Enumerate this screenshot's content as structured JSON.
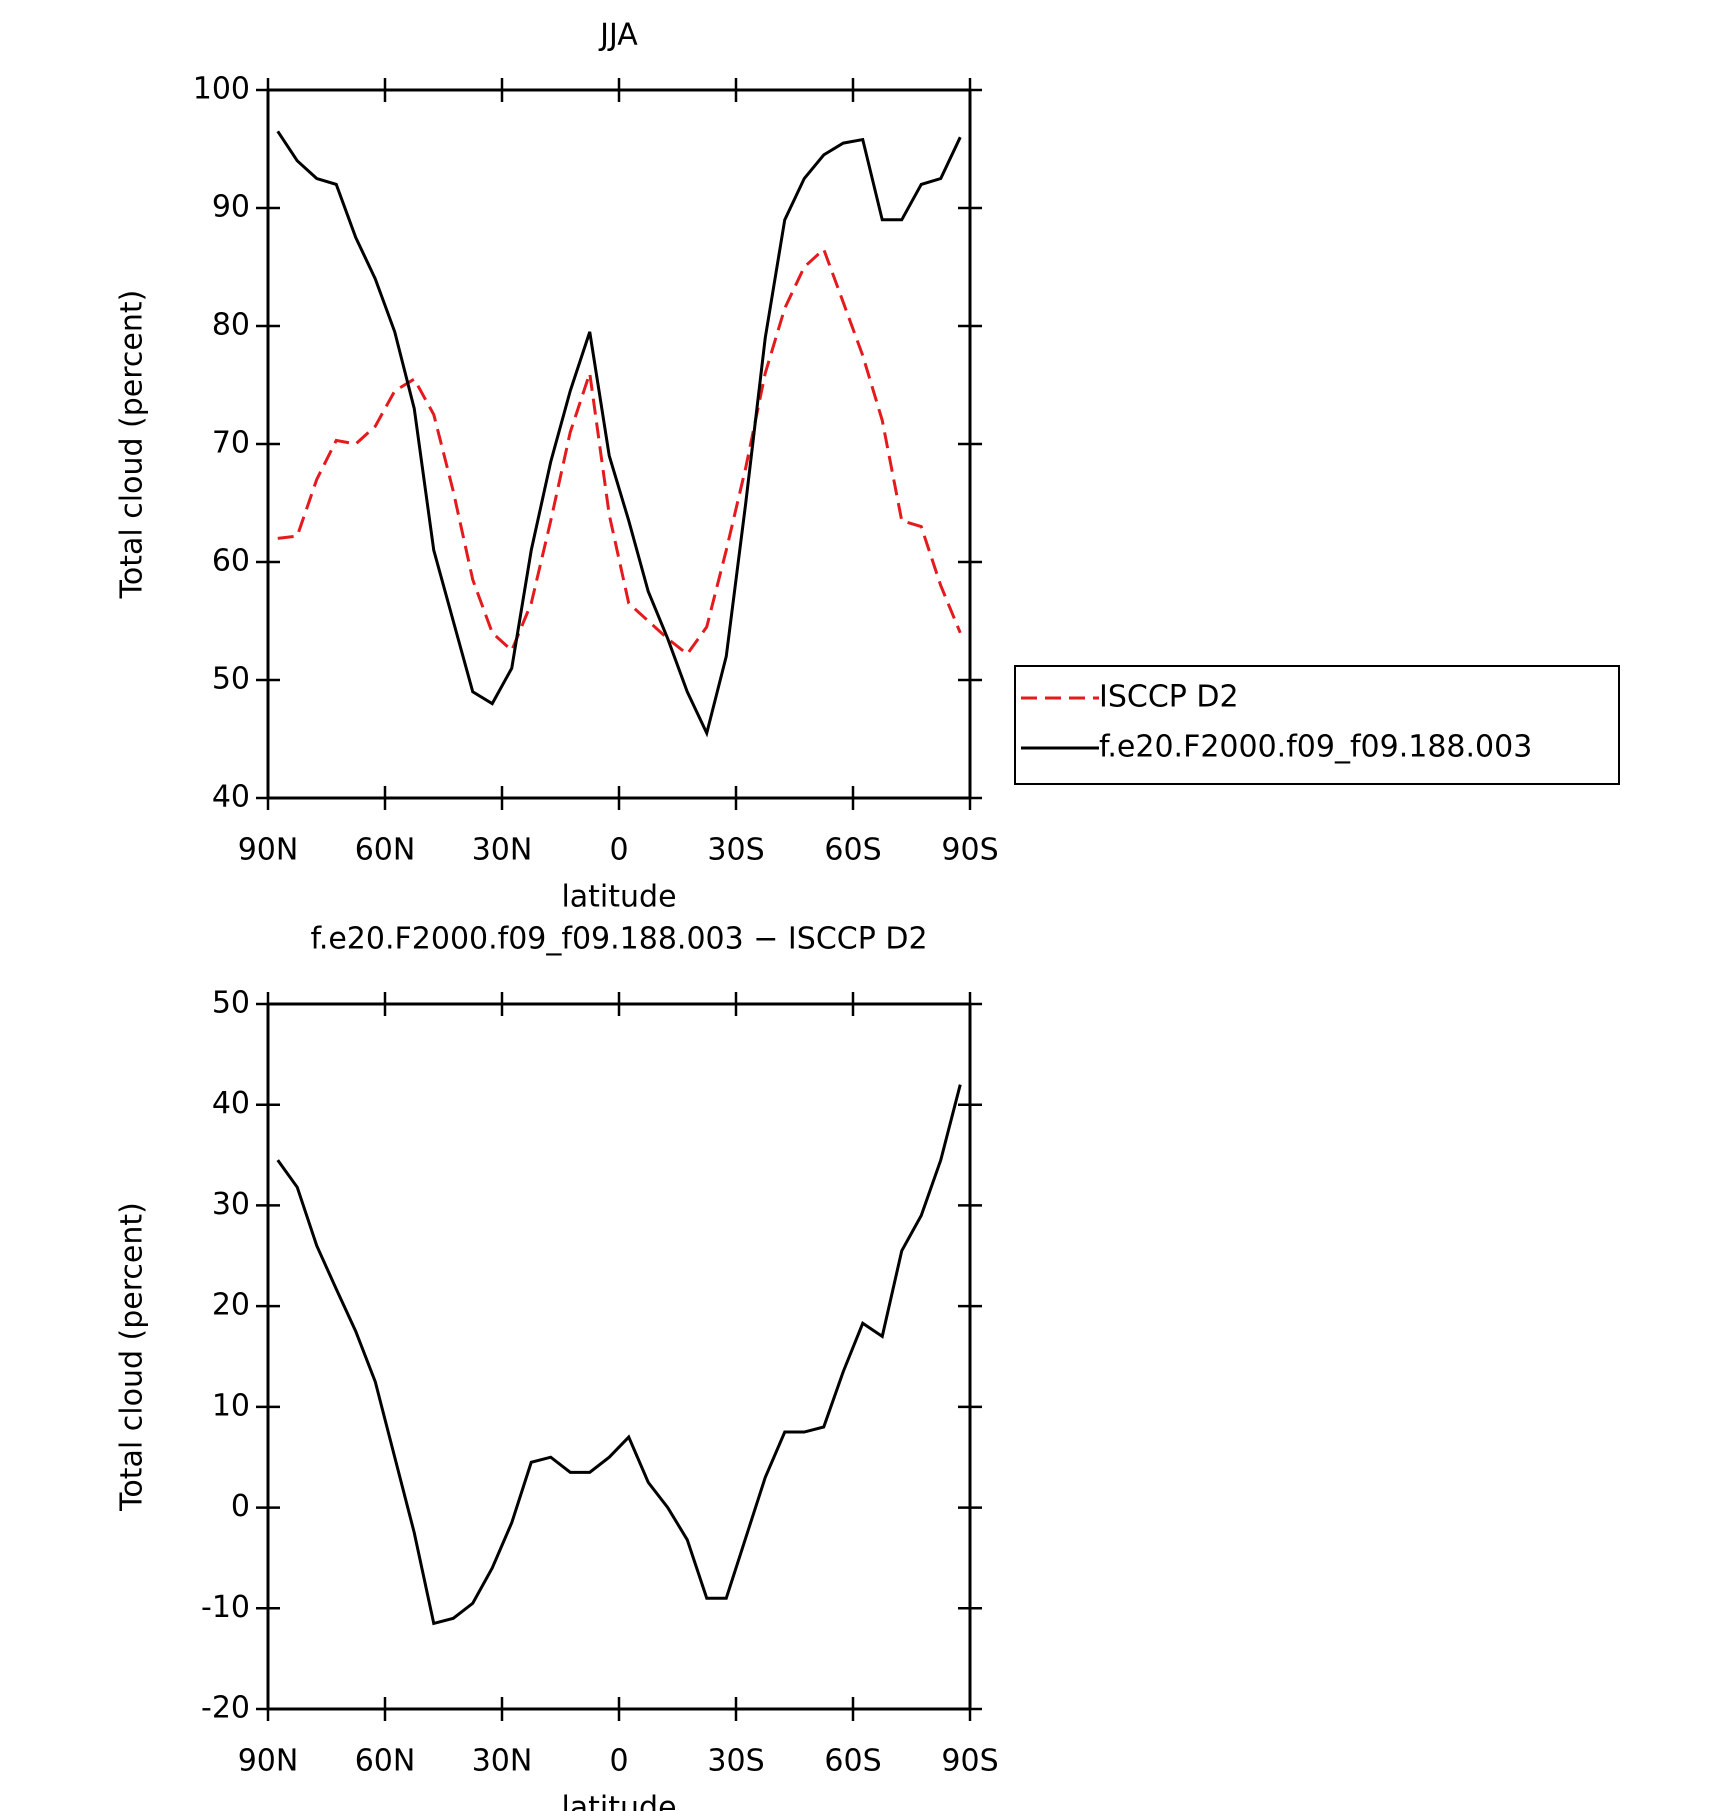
{
  "chart_data": [
    {
      "type": "line",
      "title": "JJA",
      "xlabel": "latitude",
      "ylabel": "Total cloud (percent)",
      "x": [
        87.5,
        82.5,
        77.5,
        72.5,
        67.5,
        62.5,
        57.5,
        52.5,
        47.5,
        42.5,
        37.5,
        32.5,
        27.5,
        22.5,
        17.5,
        12.5,
        7.5,
        2.5,
        -2.5,
        -7.5,
        -12.5,
        -17.5,
        -22.5,
        -27.5,
        -32.5,
        -37.5,
        -42.5,
        -47.5,
        -52.5,
        -57.5,
        -62.5,
        -67.5,
        -72.5,
        -77.5,
        -82.5,
        -87.5
      ],
      "series": [
        {
          "name": "ISCCP D2",
          "color": "#e41a1c",
          "dash": true,
          "values": [
            62,
            62.2,
            67,
            70.3,
            70,
            71.5,
            74.5,
            75.5,
            72.5,
            66,
            58.5,
            54,
            52.5,
            56.5,
            63.5,
            71,
            76,
            64,
            56.5,
            55,
            53.5,
            52.2,
            54.5,
            61,
            68,
            76,
            81.5,
            85,
            86.5,
            82,
            77.5,
            72,
            63.5,
            63,
            58,
            54
          ]
        },
        {
          "name": "f.e20.F2000.f09_f09.188.003",
          "color": "#000000",
          "dash": false,
          "values": [
            96.5,
            94,
            92.5,
            92,
            87.5,
            84,
            79.5,
            73,
            61,
            55,
            49,
            48,
            51,
            61,
            68.5,
            74.5,
            79.5,
            69,
            63.5,
            57.5,
            53.5,
            49,
            45.5,
            52,
            65,
            79,
            89,
            92.5,
            94.5,
            95.5,
            95.8,
            89,
            89,
            92,
            92.5,
            96
          ]
        }
      ],
      "xlim": [
        90,
        -90
      ],
      "xticks": [
        {
          "value": 90,
          "label": "90N"
        },
        {
          "value": 60,
          "label": "60N"
        },
        {
          "value": 30,
          "label": "30N"
        },
        0,
        {
          "value": -30,
          "label": "30S"
        },
        {
          "value": -60,
          "label": "60S"
        },
        {
          "value": -90,
          "label": "90S"
        }
      ],
      "ylim": [
        40,
        100
      ],
      "yticks": [
        40,
        50,
        60,
        70,
        80,
        90,
        100
      ],
      "legend": "right"
    },
    {
      "type": "line",
      "title": "f.e20.F2000.f09_f09.188.003 − ISCCP D2",
      "xlabel": "latitude",
      "ylabel": "Total cloud (percent)",
      "x": [
        87.5,
        82.5,
        77.5,
        72.5,
        67.5,
        62.5,
        57.5,
        52.5,
        47.5,
        42.5,
        37.5,
        32.5,
        27.5,
        22.5,
        17.5,
        12.5,
        7.5,
        2.5,
        -2.5,
        -7.5,
        -12.5,
        -17.5,
        -22.5,
        -27.5,
        -32.5,
        -37.5,
        -42.5,
        -47.5,
        -52.5,
        -57.5,
        -62.5,
        -67.5,
        -72.5,
        -77.5,
        -82.5,
        -87.5
      ],
      "series": [
        {
          "color": "#000000",
          "dash": false,
          "values": [
            34.5,
            31.8,
            26,
            21.7,
            17.5,
            12.5,
            5,
            -2.5,
            -11.5,
            -11,
            -9.5,
            -6,
            -1.5,
            4.5,
            5,
            3.5,
            3.5,
            5,
            7,
            2.5,
            0,
            -3.2,
            -9,
            -9,
            -3,
            3,
            7.5,
            7.5,
            8,
            13.5,
            18.3,
            17,
            25.5,
            29,
            34.5,
            42
          ]
        }
      ],
      "xlim": [
        90,
        -90
      ],
      "xticks": [
        {
          "value": 90,
          "label": "90N"
        },
        {
          "value": 60,
          "label": "60N"
        },
        {
          "value": 30,
          "label": "30N"
        },
        0,
        {
          "value": -30,
          "label": "30S"
        },
        {
          "value": -60,
          "label": "60S"
        },
        {
          "value": -90,
          "label": "90S"
        }
      ],
      "ylim": [
        -20,
        50
      ],
      "yticks": [
        -20,
        -10,
        0,
        10,
        20,
        30,
        40,
        50
      ]
    }
  ]
}
